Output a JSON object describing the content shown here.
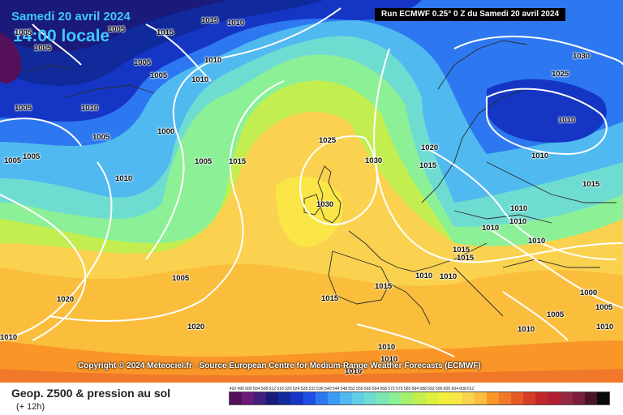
{
  "header": {
    "date": "Samedi 20 avril 2024",
    "time": "14:00 locale",
    "run": "Run ECMWF 0.25° 0 Z du Samedi 20 avril 2024"
  },
  "copyright": "Copyright © 2024 Meteociel.fr - Source European Centre for Medium-Range Weather Forecasts (ECMWF)",
  "pressure_labels": [
    "1005",
    "1015",
    "1015",
    "1005",
    "1005",
    "1010",
    "1005",
    "1005",
    "1005",
    "1010",
    "1000",
    "1005",
    "1005",
    "1015",
    "1010",
    "1005",
    "1025",
    "1030",
    "1030",
    "1020",
    "1015",
    "1010",
    "1010",
    "1010",
    "1015",
    "1015",
    "1010",
    "1010",
    "1010",
    "1000",
    "1005",
    "1010",
    "1005",
    "1010",
    "1010",
    "1015",
    "1030",
    "1025",
    "1010",
    "1010",
    "1010",
    "1015",
    "1010",
    "1015",
    "1005",
    "1005",
    "1020",
    "1020",
    "1010",
    "1010",
    "1010"
  ],
  "footer": {
    "title": "Geop. Z500 & pression au sol",
    "subtitle": "(+ 12h)"
  },
  "scale": {
    "values": [
      "492",
      "496",
      "500",
      "504",
      "508",
      "512",
      "516",
      "520",
      "524",
      "528",
      "532",
      "536",
      "540",
      "544",
      "548",
      "552",
      "556",
      "560",
      "564",
      "568",
      "572",
      "576",
      "580",
      "584",
      "588",
      "592",
      "596",
      "600",
      "604",
      "608",
      "612"
    ],
    "colors": [
      "#55105a",
      "#6b1a78",
      "#40207c",
      "#1a1a7a",
      "#102a9c",
      "#1536c4",
      "#1e50e6",
      "#2d78f0",
      "#3c9bf5",
      "#50b9f0",
      "#5fcfe6",
      "#6fdcd2",
      "#7be6b4",
      "#8cf096",
      "#a5f06e",
      "#c3ee50",
      "#dcf03c",
      "#f0f03c",
      "#fae646",
      "#fad250",
      "#fabe3c",
      "#fa9628",
      "#f07828",
      "#e65a28",
      "#d73c28",
      "#c32828",
      "#b41e32",
      "#962846",
      "#7a1e3c",
      "#4a1428",
      "#0a0a0a"
    ]
  }
}
